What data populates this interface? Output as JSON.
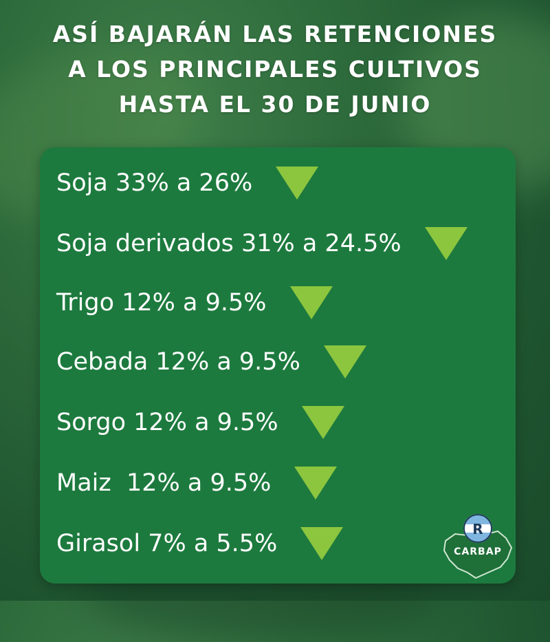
{
  "title": {
    "line1": "ASÍ BAJARÁN LAS RETENCIONES",
    "line2": "A LOS PRINCIPALES CULTIVOS",
    "line3": "HASTA EL 30 DE JUNIO"
  },
  "items": [
    {
      "label": "Soja 33% a 26%"
    },
    {
      "label": "Soja derivados 31% a 24.5%"
    },
    {
      "label": "Trigo 12% a 9.5%"
    },
    {
      "label": "Cebada 12% a 9.5%"
    },
    {
      "label": "Sorgo 12% a 9.5%"
    },
    {
      "label": "Maiz  12% a 9.5%"
    },
    {
      "label": "Girasol 7% a 5.5%"
    }
  ],
  "logo": {
    "text": "CARBAP",
    "letter": "R"
  },
  "colors": {
    "panel": "#1d7a3e",
    "arrow": "#8cc63f",
    "text": "#ffffff"
  },
  "icons": {
    "arrow": "down-triangle-icon"
  }
}
